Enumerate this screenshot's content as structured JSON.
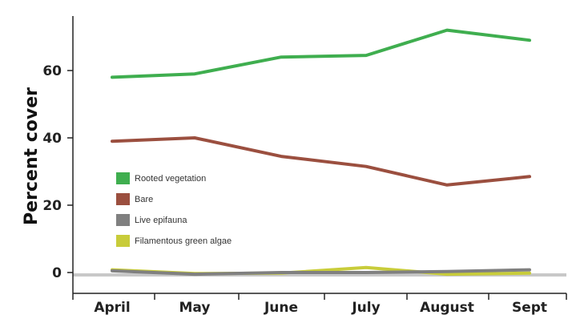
{
  "chart_data": {
    "type": "line",
    "categories": [
      "April",
      "May",
      "June",
      "July",
      "August",
      "Sept"
    ],
    "ylabel": "Percent cover",
    "yticks": [
      0,
      20,
      40,
      60
    ],
    "ylim": [
      -3,
      77
    ],
    "grid": false,
    "legend_position": "center-left",
    "series": [
      {
        "name": "Rooted vegetation",
        "color": "#3fae4f",
        "values": [
          58,
          59,
          64,
          64.5,
          72,
          69
        ]
      },
      {
        "name": "Bare",
        "color": "#9b4f3f",
        "values": [
          39,
          40,
          34.5,
          31.5,
          26,
          28.5
        ]
      },
      {
        "name": "Live epifauna",
        "color": "#808080",
        "values": [
          0.5,
          -0.5,
          0,
          0,
          0.3,
          0.8
        ]
      },
      {
        "name": "Filamentous green algae",
        "color": "#c8cc3a",
        "values": [
          0.8,
          -0.3,
          -0.2,
          1.5,
          -0.5,
          -0.2
        ]
      }
    ]
  }
}
